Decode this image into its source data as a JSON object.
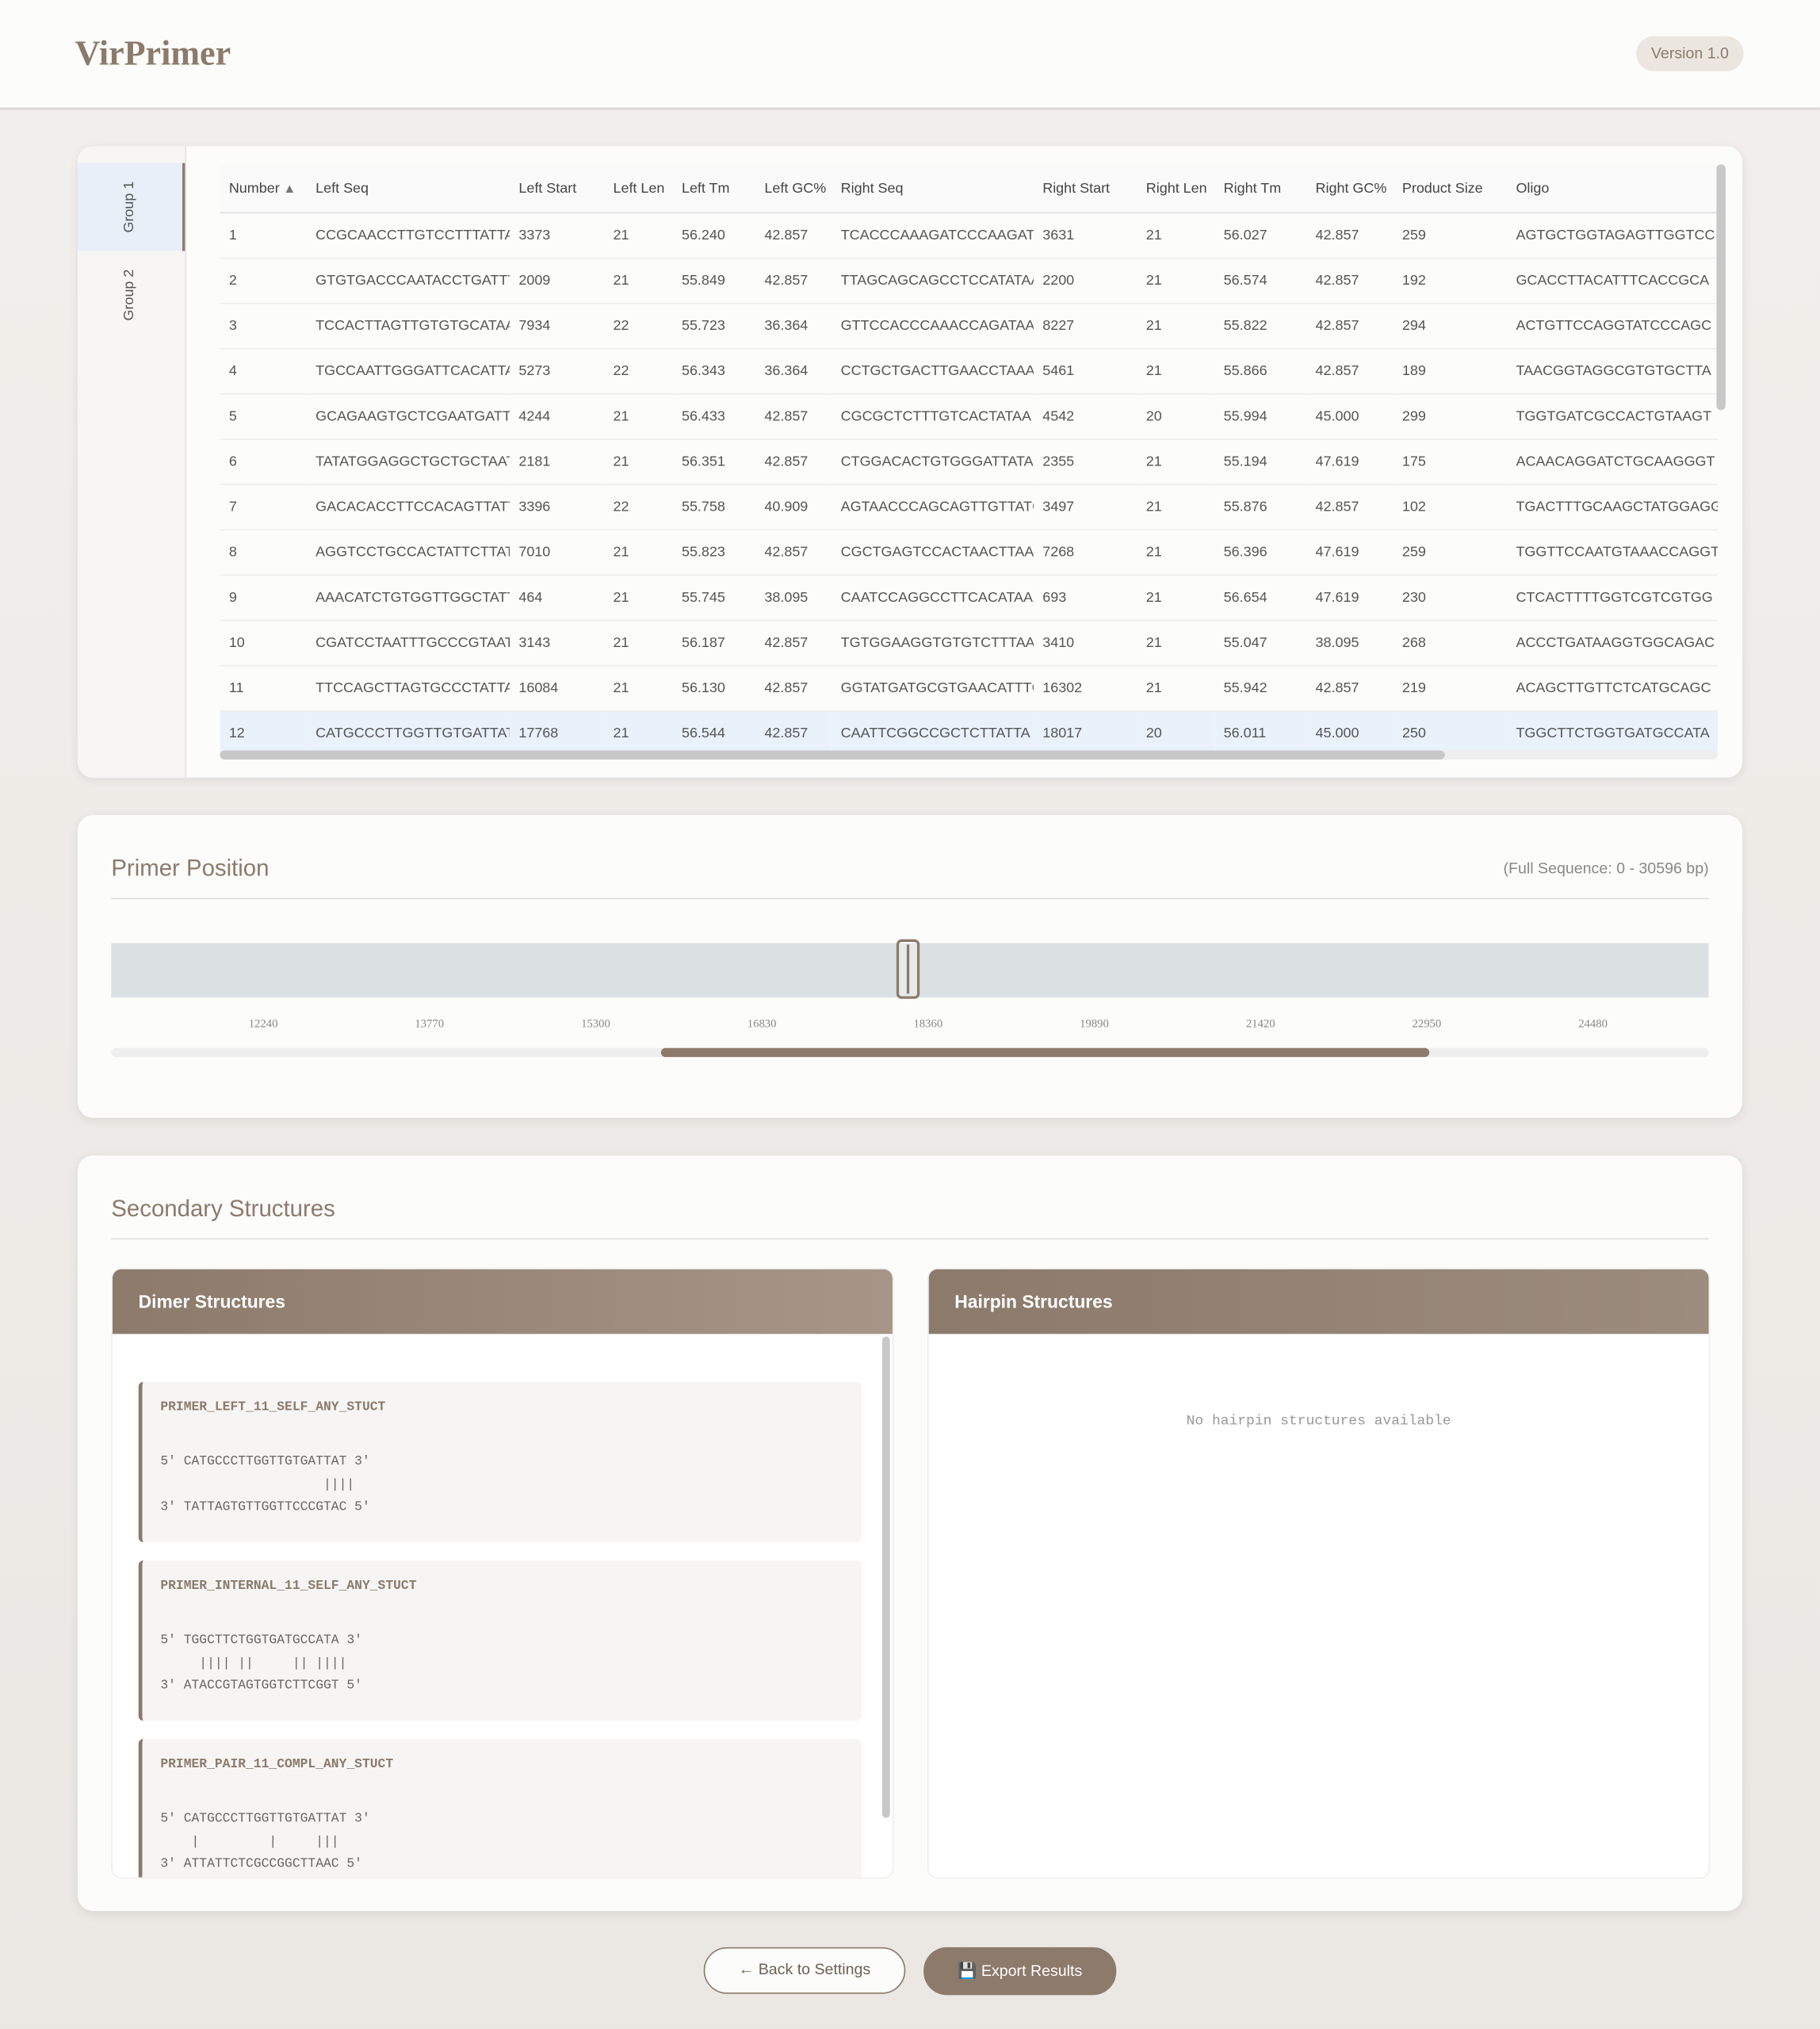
{
  "header": {
    "title": "VirPrimer",
    "version": "Version 1.0"
  },
  "tabs": [
    "Group 1",
    "Group 2"
  ],
  "table": {
    "columns": [
      "Number",
      "Left Seq",
      "Left Start",
      "Left Len",
      "Left Tm",
      "Left GC%",
      "Right Seq",
      "Right Start",
      "Right Len",
      "Right Tm",
      "Right GC%",
      "Product Size",
      "Oligo"
    ],
    "rows": [
      [
        "1",
        "CCGCAACCTTGTCCTTTATTA",
        "3373",
        "21",
        "56.240",
        "42.857",
        "TCACCCAAAGATCCCAAGATA",
        "3631",
        "21",
        "56.027",
        "42.857",
        "259",
        "AGTGCTGGTAGAGTTGGTCC"
      ],
      [
        "2",
        "GTGTGACCCAATACCTGATTT",
        "2009",
        "21",
        "55.849",
        "42.857",
        "TTAGCAGCAGCCTCCATATAA",
        "2200",
        "21",
        "56.574",
        "42.857",
        "192",
        "GCACCTTACATTTCACCGCA"
      ],
      [
        "3",
        "TCCACTTAGTTGTGTGCATAAT",
        "7934",
        "22",
        "55.723",
        "36.364",
        "GTTCCACCCAAACCAGATAAT",
        "8227",
        "21",
        "55.822",
        "42.857",
        "294",
        "ACTGTTCCAGGTATCCCAGC"
      ],
      [
        "4",
        "TGCCAATTGGGATTCACATTAT",
        "5273",
        "22",
        "56.343",
        "36.364",
        "CCTGCTGACTTGAACCTAAAT",
        "5461",
        "21",
        "55.866",
        "42.857",
        "189",
        "TAACGGTAGGCGTGTGCTTA"
      ],
      [
        "5",
        "GCAGAAGTGCTCGAATGATTA",
        "4244",
        "21",
        "56.433",
        "42.857",
        "CGCGCTCTTTGTCACTATAA",
        "4542",
        "20",
        "55.994",
        "45.000",
        "299",
        "TGGTGATCGCCACTGTAAGT"
      ],
      [
        "6",
        "TATATGGAGGCTGCTGCTAAT",
        "2181",
        "21",
        "56.351",
        "42.857",
        "CTGGACACTGTGGGATTATAG",
        "2355",
        "21",
        "55.194",
        "47.619",
        "175",
        "ACAACAGGATCTGCAAGGGT"
      ],
      [
        "7",
        "GACACACCTTCCACAGTTATTA",
        "3396",
        "22",
        "55.758",
        "40.909",
        "AGTAACCCAGCAGTTGTTATG",
        "3497",
        "21",
        "55.876",
        "42.857",
        "102",
        "TGACTTTGCAAGCTATGGAGG"
      ],
      [
        "8",
        "AGGTCCTGCCACTATTCTTAT",
        "7010",
        "21",
        "55.823",
        "42.857",
        "CGCTGAGTCCACTAACTTAAC",
        "7268",
        "21",
        "56.396",
        "47.619",
        "259",
        "TGGTTCCAATGTAAACCAGGT"
      ],
      [
        "9",
        "AAACATCTGTGGTTGGCTATT",
        "464",
        "21",
        "55.745",
        "38.095",
        "CAATCCAGGCCTTCACATAAG",
        "693",
        "21",
        "56.654",
        "47.619",
        "230",
        "CTCACTTTTGGTCGTCGTGG"
      ],
      [
        "10",
        "CGATCCTAATTTGCCCGTAAT",
        "3143",
        "21",
        "56.187",
        "42.857",
        "TGTGGAAGGTGTGTCTTTAAT",
        "3410",
        "21",
        "55.047",
        "38.095",
        "268",
        "ACCCTGATAAGGTGGCAGAC"
      ],
      [
        "11",
        "TTCCAGCTTAGTGCCCTATTA",
        "16084",
        "21",
        "56.130",
        "42.857",
        "GGTATGATGCGTGAACATTTG",
        "16302",
        "21",
        "55.942",
        "42.857",
        "219",
        "ACAGCTTGTTCTCATGCAGC"
      ],
      [
        "12",
        "CATGCCCTTGGTTGTGATTAT",
        "17768",
        "21",
        "56.544",
        "42.857",
        "CAATTCGGCCGCTCTTATTA",
        "18017",
        "20",
        "56.011",
        "45.000",
        "250",
        "TGGCTTCTGGTGATGCCATA"
      ]
    ]
  },
  "position": {
    "title": "Primer Position",
    "range": "(Full Sequence: 0 - 30596 bp)",
    "ticks": [
      "12240",
      "13770",
      "15300",
      "16830",
      "18360",
      "19890",
      "21420",
      "22950",
      "24480"
    ]
  },
  "structures": {
    "title": "Secondary Structures",
    "dimer_title": "Dimer Structures",
    "hairpin_title": "Hairpin Structures",
    "hairpin_empty": "No hairpin structures available",
    "dimers": [
      {
        "name": "PRIMER_LEFT_11_SELF_ANY_STUCT",
        "lines": [
          "5' CATGCCCTTGGTTGTGATTAT 3'",
          "                     ||||",
          "3' TATTAGTGTTGGTTCCCGTAC 5'"
        ]
      },
      {
        "name": "PRIMER_INTERNAL_11_SELF_ANY_STUCT",
        "lines": [
          "5' TGGCTTCTGGTGATGCCATA 3'",
          "     |||| ||     || ||||",
          "3' ATACCGTAGTGGTCTTCGGT 5'"
        ]
      },
      {
        "name": "PRIMER_PAIR_11_COMPL_ANY_STUCT",
        "lines": [
          "5' CATGCCCTTGGTTGTGATTAT 3'",
          "    |         |     |||",
          "3' ATTATTCTCGCCGGCTTAAC 5'"
        ]
      }
    ]
  },
  "buttons": {
    "back": "← Back to Settings",
    "export": "💾 Export Results"
  }
}
